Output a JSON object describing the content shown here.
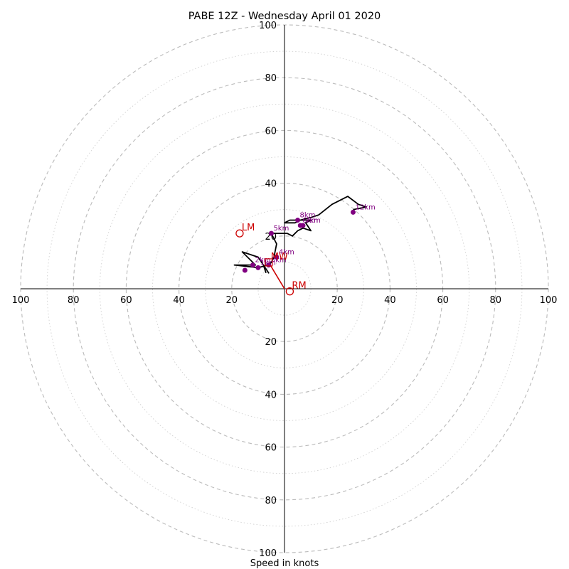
{
  "chart_data": {
    "type": "hodograph",
    "title": "PABE 12Z - Wednesday April 01 2020",
    "xlabel": "Speed in knots",
    "units": "knots",
    "range": [
      -100,
      100
    ],
    "ring_step": 10,
    "labeled_rings": [
      20,
      40,
      60,
      80,
      100
    ],
    "tick_labels": [
      "100",
      "80",
      "60",
      "40",
      "20",
      "20",
      "40",
      "60",
      "80",
      "100"
    ],
    "y_tick_labels": [
      "100",
      "80",
      "60",
      "40",
      "20",
      "20",
      "40",
      "60",
      "80",
      "100"
    ],
    "grid": true,
    "colors": {
      "trace": "#000000",
      "points": "#800080",
      "motion": "#cc0000",
      "grid": "#bbbbbb"
    },
    "trace": [
      [
        -7,
        6
      ],
      [
        -8,
        9
      ],
      [
        -6,
        6
      ],
      [
        -10,
        12
      ],
      [
        -16,
        14
      ],
      [
        -11,
        9
      ],
      [
        -19,
        9
      ],
      [
        -10,
        8
      ],
      [
        -6,
        9
      ],
      [
        -5,
        10
      ],
      [
        -4,
        12
      ],
      [
        -3,
        17
      ],
      [
        -5,
        21
      ],
      [
        -3,
        21
      ],
      [
        1,
        21
      ],
      [
        3,
        20
      ],
      [
        5,
        22
      ],
      [
        7,
        23
      ],
      [
        10,
        22
      ],
      [
        8,
        25
      ],
      [
        10,
        26
      ],
      [
        8,
        26
      ],
      [
        6,
        26
      ],
      [
        4,
        25
      ],
      [
        1,
        25
      ],
      [
        0,
        25
      ],
      [
        2,
        26
      ],
      [
        6,
        26
      ],
      [
        10,
        27
      ],
      [
        13,
        28
      ],
      [
        18,
        32
      ],
      [
        24,
        35
      ],
      [
        28,
        32
      ],
      [
        31,
        31
      ],
      [
        26,
        30
      ]
    ],
    "height_markers": [
      {
        "label": "1km",
        "u": -10,
        "v": 8
      },
      {
        "label": "2km",
        "u": -12,
        "v": 9
      },
      {
        "label": "3km",
        "u": -6,
        "v": 9
      },
      {
        "label": "4km",
        "u": -3,
        "v": 12
      },
      {
        "label": "5km",
        "u": -5,
        "v": 21
      },
      {
        "label": "6km",
        "u": 6,
        "v": 24
      },
      {
        "label": "7km",
        "u": 7,
        "v": 24
      },
      {
        "label": "8km",
        "u": 5,
        "v": 26
      },
      {
        "label": "12km",
        "u": 26,
        "v": 29
      },
      {
        "label": "",
        "u": -15,
        "v": 7
      }
    ],
    "storm_motion": {
      "labels": {
        "rm": "RM",
        "lm": "LM",
        "mw": "MW"
      },
      "RM": {
        "u": 2,
        "v": -1
      },
      "LM": {
        "u": -17,
        "v": 21
      },
      "MW": {
        "u": -6,
        "v": 10
      }
    },
    "shear_vector": {
      "from": [
        -6,
        10
      ],
      "to": [
        0,
        0
      ]
    }
  }
}
